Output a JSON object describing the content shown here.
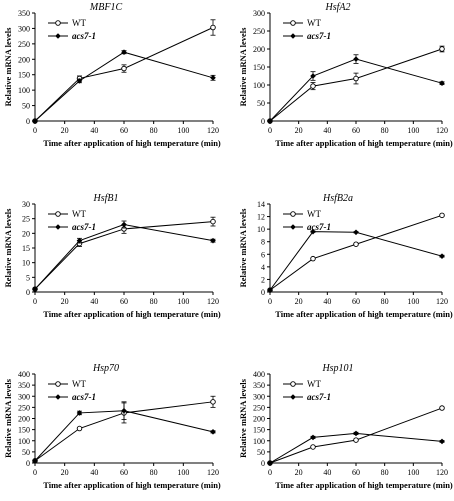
{
  "chart_data": [
    {
      "type": "line",
      "title": "MBF1C",
      "xlabel": "Time after application of high temperature (min)",
      "ylabel": "Relative mRNA levels",
      "xlim": [
        0,
        120
      ],
      "ylim": [
        0,
        350
      ],
      "xticks": [
        0,
        20,
        40,
        60,
        80,
        100,
        120
      ],
      "yticks": [
        0,
        50,
        100,
        150,
        200,
        250,
        300,
        350
      ],
      "legend_position": "top-left",
      "series": [
        {
          "name": "WT",
          "marker": "open-circle",
          "x": [
            0,
            30,
            60,
            120
          ],
          "y": [
            0,
            138,
            170,
            303
          ],
          "err": [
            0,
            8,
            12,
            25
          ]
        },
        {
          "name": "acs7-1",
          "marker": "filled-diamond",
          "x": [
            0,
            30,
            60,
            120
          ],
          "y": [
            0,
            130,
            223,
            140
          ],
          "err": [
            0,
            6,
            5,
            8
          ]
        }
      ]
    },
    {
      "type": "line",
      "title": "HsfA2",
      "xlabel": "Time after application of high temperature (min)",
      "ylabel": "Relative mRNA levels",
      "xlim": [
        0,
        120
      ],
      "ylim": [
        0,
        300
      ],
      "xticks": [
        0,
        20,
        40,
        60,
        80,
        100,
        120
      ],
      "yticks": [
        0,
        50,
        100,
        150,
        200,
        250,
        300
      ],
      "legend_position": "top-left",
      "series": [
        {
          "name": "WT",
          "marker": "open-circle",
          "x": [
            0,
            30,
            60,
            120
          ],
          "y": [
            0,
            97,
            118,
            200
          ],
          "err": [
            0,
            10,
            15,
            8
          ]
        },
        {
          "name": "acs7-1",
          "marker": "filled-diamond",
          "x": [
            0,
            30,
            60,
            120
          ],
          "y": [
            0,
            125,
            172,
            105
          ],
          "err": [
            0,
            12,
            12,
            4
          ]
        }
      ]
    },
    {
      "type": "line",
      "title": "HsfB1",
      "xlabel": "Time after application of high temperature (min)",
      "ylabel": "Relative mRNA levels",
      "xlim": [
        0,
        120
      ],
      "ylim": [
        0,
        30
      ],
      "xticks": [
        0,
        20,
        40,
        60,
        80,
        100,
        120
      ],
      "yticks": [
        0,
        5,
        10,
        15,
        20,
        25,
        30
      ],
      "legend_position": "top-left",
      "series": [
        {
          "name": "WT",
          "marker": "open-circle",
          "x": [
            0,
            30,
            60,
            120
          ],
          "y": [
            1,
            16.5,
            21.5,
            24
          ],
          "err": [
            0,
            1,
            1.5,
            1.5
          ]
        },
        {
          "name": "acs7-1",
          "marker": "filled-diamond",
          "x": [
            0,
            30,
            60,
            120
          ],
          "y": [
            1,
            17.5,
            23,
            17.5
          ],
          "err": [
            0,
            0.8,
            1.2,
            0.5
          ]
        }
      ]
    },
    {
      "type": "line",
      "title": "HsfB2a",
      "xlabel": "Time after application of high temperature (min)",
      "ylabel": "Relative mRNA levels",
      "xlim": [
        0,
        120
      ],
      "ylim": [
        0,
        14
      ],
      "xticks": [
        0,
        20,
        40,
        60,
        80,
        100,
        120
      ],
      "yticks": [
        0,
        2,
        4,
        6,
        8,
        10,
        12,
        14
      ],
      "legend_position": "top-left",
      "series": [
        {
          "name": "WT",
          "marker": "open-circle",
          "x": [
            0,
            30,
            60,
            120
          ],
          "y": [
            0.3,
            5.3,
            7.6,
            12.2
          ],
          "err": [
            0,
            0.1,
            0.1,
            0.15
          ]
        },
        {
          "name": "acs7-1",
          "marker": "filled-diamond",
          "x": [
            0,
            30,
            60,
            120
          ],
          "y": [
            0.3,
            9.6,
            9.5,
            5.7
          ],
          "err": [
            0,
            0.1,
            0.1,
            0.15
          ]
        }
      ]
    },
    {
      "type": "line",
      "title": "Hsp70",
      "xlabel": "Time after application of high temperature (min)",
      "ylabel": "Relative mRNA levels",
      "xlim": [
        0,
        120
      ],
      "ylim": [
        0,
        400
      ],
      "xticks": [
        0,
        20,
        40,
        60,
        80,
        100,
        120
      ],
      "yticks": [
        0,
        50,
        100,
        150,
        200,
        250,
        300,
        350,
        400
      ],
      "legend_position": "top-left",
      "series": [
        {
          "name": "WT",
          "marker": "open-circle",
          "x": [
            0,
            30,
            60,
            120
          ],
          "y": [
            10,
            155,
            225,
            275
          ],
          "err": [
            0,
            5,
            45,
            25
          ]
        },
        {
          "name": "acs7-1",
          "marker": "filled-diamond",
          "x": [
            0,
            30,
            60,
            120
          ],
          "y": [
            10,
            225,
            235,
            140
          ],
          "err": [
            0,
            8,
            40,
            5
          ]
        }
      ]
    },
    {
      "type": "line",
      "title": "Hsp101",
      "xlabel": "Time after application of high temperature (min)",
      "ylabel": "Relative mRNA levels",
      "xlim": [
        0,
        120
      ],
      "ylim": [
        0,
        400
      ],
      "xticks": [
        0,
        20,
        40,
        60,
        80,
        100,
        120
      ],
      "yticks": [
        0,
        50,
        100,
        150,
        200,
        250,
        300,
        350,
        400
      ],
      "legend_position": "top-left",
      "series": [
        {
          "name": "WT",
          "marker": "open-circle",
          "x": [
            0,
            30,
            60,
            120
          ],
          "y": [
            0,
            72,
            103,
            247
          ],
          "err": [
            0,
            3,
            5,
            5
          ]
        },
        {
          "name": "acs7-1",
          "marker": "filled-diamond",
          "x": [
            0,
            30,
            60,
            120
          ],
          "y": [
            0,
            115,
            133,
            97
          ],
          "err": [
            0,
            5,
            5,
            4
          ]
        }
      ]
    }
  ]
}
